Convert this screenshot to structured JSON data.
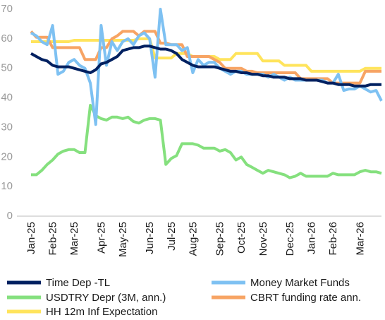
{
  "chart_data": {
    "type": "line",
    "categories": [
      "Jan-25",
      null,
      null,
      null,
      "Feb-25",
      null,
      null,
      null,
      "Mar-25",
      null,
      null,
      null,
      null,
      "Apr-25",
      null,
      null,
      null,
      "May-25",
      null,
      null,
      null,
      null,
      "Jun-25",
      null,
      null,
      null,
      "Jul-25",
      null,
      null,
      null,
      "Aug-25",
      null,
      null,
      null,
      null,
      "Sep-25",
      null,
      null,
      null,
      "Oct-25",
      null,
      null,
      null,
      "Nov-25",
      null,
      null,
      null,
      null,
      "Dec-25",
      null,
      null,
      null,
      "Jan-26",
      null,
      null,
      null,
      "Feb-26",
      null,
      null,
      null,
      null,
      "Mar-26",
      null,
      null,
      null,
      null
    ],
    "ylim": [
      0,
      70
    ],
    "yticks": [
      0,
      10,
      20,
      30,
      40,
      50,
      60,
      70
    ],
    "grid": false,
    "series": [
      {
        "name": "Time Dep -TL",
        "color": "#002060",
        "values": [
          55,
          54,
          53,
          52.5,
          51,
          50.5,
          50.5,
          50.5,
          50,
          49.5,
          49,
          48.5,
          49.5,
          51.5,
          52,
          53,
          54,
          56,
          56.5,
          57,
          57,
          57.5,
          57.5,
          57,
          56.5,
          56.5,
          56,
          55,
          53,
          52,
          51,
          50.5,
          50.5,
          50.5,
          50.5,
          50,
          49.5,
          49,
          49,
          48.5,
          48.5,
          48,
          48,
          47.5,
          47.5,
          47,
          47,
          47,
          46.5,
          46.5,
          46.5,
          46,
          46,
          46,
          45.5,
          45,
          45,
          44.5,
          44.5,
          44.5,
          44,
          44,
          44,
          44.5,
          44.5,
          44.5
        ]
      },
      {
        "name": "Money Market Funds",
        "color": "#7ec1f2",
        "values": [
          62,
          61,
          59,
          58,
          64.5,
          48,
          49,
          52,
          53,
          51,
          50,
          45,
          31,
          64.5,
          51,
          59,
          56,
          59,
          60,
          58,
          61,
          62,
          60,
          47,
          70,
          58,
          58,
          58,
          56,
          57,
          48.5,
          53,
          51,
          52,
          52,
          50,
          49,
          48,
          49,
          49,
          48,
          48,
          48,
          48,
          47,
          48,
          47,
          46,
          47,
          46,
          46,
          46,
          46,
          46,
          46,
          45,
          45,
          48,
          42.5,
          43,
          43,
          44,
          43,
          42,
          42.5,
          39
        ]
      },
      {
        "name": "USDTRY Depr (3M, ann.)",
        "color": "#85e07e",
        "values": [
          14,
          14,
          15.5,
          17.5,
          19,
          21,
          22,
          22.5,
          22.5,
          21.5,
          21.5,
          37.5,
          34,
          33,
          32.5,
          33.5,
          33.5,
          33,
          33.5,
          32,
          31.5,
          32.5,
          33,
          33,
          32.5,
          17.5,
          19.5,
          20.5,
          24.5,
          24.5,
          24.5,
          24,
          23,
          23,
          23,
          22,
          22.5,
          21.5,
          19,
          20,
          17.5,
          16.5,
          15.5,
          14.5,
          15.5,
          15,
          14.5,
          14,
          13,
          13.5,
          14.5,
          13.5,
          13.5,
          13.5,
          13.5,
          13.5,
          14.5,
          14,
          14,
          14,
          14,
          15,
          15.5,
          15,
          15,
          14.5
        ]
      },
      {
        "name": "CBRT funding rate ann.",
        "color": "#f7a464",
        "values": [
          62.5,
          60.5,
          60.5,
          60.5,
          57,
          57,
          57,
          57,
          57,
          57,
          53,
          53,
          53,
          57,
          57,
          60,
          61,
          62.5,
          62.5,
          62.5,
          61,
          62.5,
          62.5,
          62.5,
          58.5,
          58.5,
          58,
          58,
          58,
          54,
          54,
          54,
          54,
          54,
          53,
          52,
          50,
          50,
          50,
          50,
          49,
          49,
          48.5,
          48.5,
          48.5,
          48.5,
          48.5,
          48.5,
          48.5,
          48.5,
          46.5,
          46.5,
          46.5,
          46.5,
          46.5,
          46.5,
          45,
          45,
          45,
          45,
          45,
          45,
          49,
          49,
          49,
          49
        ]
      },
      {
        "name": "HH 12m Inf Expectation",
        "color": "#ffe45c",
        "values": [
          59,
          59,
          59,
          59,
          59,
          59,
          59,
          59,
          59.5,
          59.5,
          59.5,
          59.5,
          59.5,
          59.5,
          59.5,
          59.5,
          59.5,
          59.5,
          59.5,
          59.5,
          60,
          60,
          60,
          53.5,
          53.5,
          53.5,
          53.5,
          55,
          55,
          55,
          54,
          54,
          54,
          54,
          54,
          53,
          53,
          53,
          55,
          55,
          55,
          55,
          55,
          52.5,
          52.5,
          52.5,
          52.5,
          51,
          51,
          51,
          51,
          51,
          49,
          49,
          49,
          49,
          49,
          49,
          49,
          49,
          49,
          49,
          50,
          50,
          50,
          50
        ]
      }
    ]
  }
}
